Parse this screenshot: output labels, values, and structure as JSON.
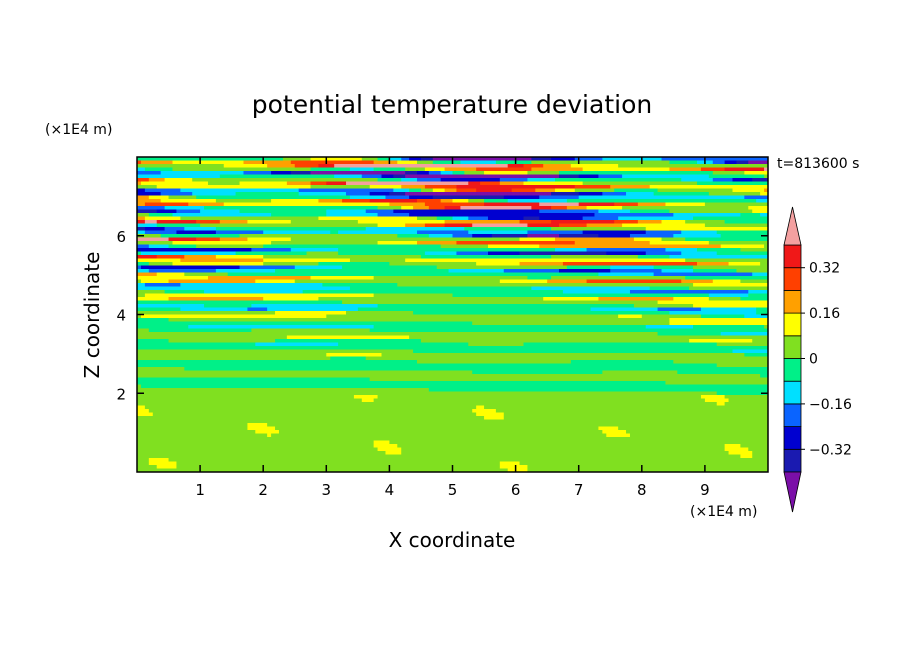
{
  "chart_data": {
    "type": "heatmap",
    "title": "potential temperature deviation",
    "xlabel": "X coordinate",
    "ylabel": "Z coordinate",
    "x_unit": "(×1E4 m)",
    "y_unit": "(×1E4 m)",
    "time_label": "t=813600 s",
    "xlim": [
      0,
      10
    ],
    "ylim": [
      0,
      8
    ],
    "x_ticks": [
      "1",
      "2",
      "3",
      "4",
      "5",
      "6",
      "7",
      "8",
      "9"
    ],
    "y_ticks": [
      "2",
      "4",
      "6"
    ],
    "colorbar": {
      "labels": [
        "0.32",
        "0.16",
        "0",
        "−0.16",
        "−0.32"
      ],
      "label_levels": [
        0.32,
        0.16,
        0,
        -0.16,
        -0.32
      ],
      "levels": [
        -0.4,
        -0.32,
        -0.24,
        -0.16,
        -0.08,
        0,
        0.08,
        0.16,
        0.24,
        0.32,
        0.4
      ],
      "colors": [
        "#7b0fa8",
        "#1a1ab0",
        "#0000d0",
        "#0a64ff",
        "#00e0ff",
        "#00f088",
        "#80e020",
        "#ffff00",
        "#ffa000",
        "#ff4000",
        "#f01818",
        "#f4a0a0"
      ],
      "extend": "both"
    },
    "description_layers": [
      {
        "z_range": [
          0,
          2.0
        ],
        "pattern": "weak perturbations, mostly 0 to 0.08 (green / light green)"
      },
      {
        "z_range": [
          2.0,
          5.0
        ],
        "pattern": "thin horizontal bands, -0.08 to 0.16"
      },
      {
        "z_range": [
          5.0,
          8.0
        ],
        "pattern": "strong layered anomalies from -0.4 to 0.4"
      }
    ]
  }
}
